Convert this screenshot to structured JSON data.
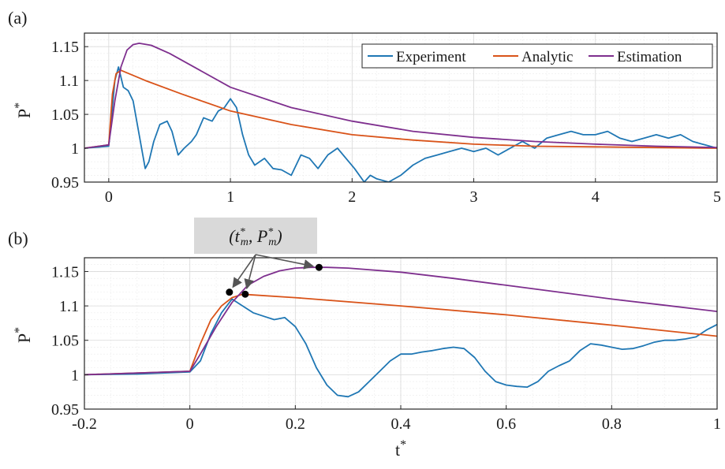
{
  "colors": {
    "experiment": "#1f77b4",
    "analytic": "#d95319",
    "estimation": "#7e2f8e",
    "annotation_box": "#d9d9d9"
  },
  "panel_labels": [
    "(a)",
    "(b)"
  ],
  "x_axis_label": "t*",
  "y_axis_label": "P*",
  "annotation": {
    "text": "(t*m, P*m)",
    "marker_color": "#000000"
  },
  "chart_data": [
    {
      "type": "line",
      "panel": "(a)",
      "xlim": [
        -0.2,
        5
      ],
      "ylim": [
        0.95,
        1.17
      ],
      "xticks": [
        0,
        1,
        2,
        3,
        4,
        5
      ],
      "xtick_labels": [
        "0",
        "1",
        "2",
        "3",
        "4",
        "5"
      ],
      "yticks": [
        0.95,
        1,
        1.05,
        1.1,
        1.15
      ],
      "ytick_labels": [
        "0.95",
        "1",
        "1.05",
        "1.1",
        "1.15"
      ],
      "ylabel": "P*",
      "grid": true,
      "legend": {
        "position": "top-right",
        "entries": [
          "Experiment",
          "Analytic",
          "Estimation"
        ]
      },
      "series": [
        {
          "name": "Experiment",
          "color": "#1f77b4",
          "x": [
            -0.2,
            0,
            0.02,
            0.05,
            0.08,
            0.12,
            0.16,
            0.2,
            0.25,
            0.3,
            0.33,
            0.37,
            0.42,
            0.48,
            0.52,
            0.57,
            0.62,
            0.68,
            0.72,
            0.78,
            0.85,
            0.9,
            0.95,
            1.0,
            1.05,
            1.1,
            1.15,
            1.2,
            1.28,
            1.35,
            1.42,
            1.5,
            1.58,
            1.65,
            1.72,
            1.8,
            1.88,
            1.95,
            2.02,
            2.1,
            2.15,
            2.2,
            2.3,
            2.4,
            2.5,
            2.6,
            2.7,
            2.8,
            2.9,
            3.0,
            3.1,
            3.2,
            3.3,
            3.4,
            3.5,
            3.6,
            3.7,
            3.8,
            3.9,
            4.0,
            4.1,
            4.2,
            4.3,
            4.4,
            4.5,
            4.6,
            4.7,
            4.8,
            4.9,
            5.0
          ],
          "y": [
            1.0,
            1.003,
            1.04,
            1.1,
            1.12,
            1.09,
            1.085,
            1.07,
            1.02,
            0.97,
            0.98,
            1.01,
            1.035,
            1.04,
            1.025,
            0.99,
            1.0,
            1.01,
            1.02,
            1.045,
            1.04,
            1.055,
            1.06,
            1.073,
            1.06,
            1.02,
            0.99,
            0.975,
            0.985,
            0.97,
            0.968,
            0.96,
            0.99,
            0.985,
            0.97,
            0.99,
            1.0,
            0.985,
            0.97,
            0.95,
            0.96,
            0.955,
            0.95,
            0.96,
            0.975,
            0.985,
            0.99,
            0.995,
            1.0,
            0.995,
            1.0,
            0.99,
            1.0,
            1.01,
            1.0,
            1.015,
            1.02,
            1.025,
            1.02,
            1.02,
            1.025,
            1.015,
            1.01,
            1.015,
            1.02,
            1.015,
            1.02,
            1.01,
            1.005,
            1.0
          ]
        },
        {
          "name": "Analytic",
          "color": "#d95319",
          "x": [
            -0.2,
            0,
            0.03,
            0.06,
            0.1,
            0.3,
            0.6,
            1.0,
            1.5,
            2.0,
            2.5,
            3.0,
            3.5,
            4.0,
            4.5,
            5.0
          ],
          "y": [
            1.0,
            1.005,
            1.08,
            1.11,
            1.115,
            1.1,
            1.08,
            1.055,
            1.035,
            1.02,
            1.012,
            1.006,
            1.003,
            1.002,
            1.001,
            1.0
          ]
        },
        {
          "name": "Estimation",
          "color": "#7e2f8e",
          "x": [
            -0.2,
            0,
            0.05,
            0.1,
            0.15,
            0.2,
            0.25,
            0.35,
            0.5,
            0.75,
            1.0,
            1.5,
            2.0,
            2.5,
            3.0,
            3.5,
            4.0,
            4.5,
            5.0
          ],
          "y": [
            1.0,
            1.005,
            1.07,
            1.12,
            1.145,
            1.153,
            1.155,
            1.152,
            1.14,
            1.115,
            1.09,
            1.06,
            1.04,
            1.025,
            1.016,
            1.01,
            1.006,
            1.003,
            1.001
          ]
        }
      ]
    },
    {
      "type": "line",
      "panel": "(b)",
      "xlim": [
        -0.2,
        1
      ],
      "ylim": [
        0.95,
        1.17
      ],
      "xticks": [
        -0.2,
        0,
        0.2,
        0.4,
        0.6,
        0.8,
        1
      ],
      "xtick_labels": [
        "-0.2",
        "0",
        "0.2",
        "0.4",
        "0.6",
        "0.8",
        "1"
      ],
      "yticks": [
        0.95,
        1,
        1.05,
        1.1,
        1.15
      ],
      "ytick_labels": [
        "0.95",
        "1",
        "1.05",
        "1.1",
        "1.15"
      ],
      "xlabel": "t*",
      "ylabel": "P*",
      "grid": true,
      "markers": [
        {
          "x": 0.075,
          "y": 1.12
        },
        {
          "x": 0.105,
          "y": 1.117
        },
        {
          "x": 0.245,
          "y": 1.156
        }
      ],
      "series": [
        {
          "name": "Experiment",
          "color": "#1f77b4",
          "x": [
            -0.2,
            -0.1,
            0,
            0.02,
            0.04,
            0.06,
            0.08,
            0.1,
            0.12,
            0.14,
            0.16,
            0.18,
            0.2,
            0.22,
            0.24,
            0.26,
            0.28,
            0.3,
            0.32,
            0.34,
            0.36,
            0.38,
            0.4,
            0.42,
            0.44,
            0.46,
            0.48,
            0.5,
            0.52,
            0.54,
            0.56,
            0.58,
            0.6,
            0.62,
            0.64,
            0.66,
            0.68,
            0.7,
            0.72,
            0.74,
            0.76,
            0.78,
            0.8,
            0.82,
            0.84,
            0.86,
            0.88,
            0.9,
            0.92,
            0.94,
            0.96,
            0.98,
            1.0
          ],
          "y": [
            1.0,
            1.001,
            1.004,
            1.02,
            1.06,
            1.09,
            1.11,
            1.1,
            1.09,
            1.085,
            1.08,
            1.083,
            1.07,
            1.045,
            1.01,
            0.985,
            0.97,
            0.968,
            0.975,
            0.99,
            1.005,
            1.02,
            1.03,
            1.03,
            1.033,
            1.035,
            1.038,
            1.04,
            1.038,
            1.025,
            1.005,
            0.99,
            0.985,
            0.983,
            0.982,
            0.99,
            1.005,
            1.013,
            1.02,
            1.035,
            1.045,
            1.043,
            1.04,
            1.037,
            1.038,
            1.042,
            1.047,
            1.05,
            1.05,
            1.052,
            1.055,
            1.065,
            1.073
          ]
        },
        {
          "name": "Analytic",
          "color": "#d95319",
          "x": [
            -0.2,
            0,
            0.02,
            0.04,
            0.06,
            0.08,
            0.1,
            0.2,
            0.4,
            0.6,
            0.8,
            1.0
          ],
          "y": [
            1.0,
            1.005,
            1.045,
            1.08,
            1.1,
            1.112,
            1.117,
            1.112,
            1.1,
            1.087,
            1.072,
            1.056
          ]
        },
        {
          "name": "Estimation",
          "color": "#7e2f8e",
          "x": [
            -0.2,
            0,
            0.02,
            0.05,
            0.08,
            0.11,
            0.14,
            0.17,
            0.2,
            0.23,
            0.26,
            0.3,
            0.4,
            0.5,
            0.6,
            0.7,
            0.8,
            0.9,
            1.0
          ],
          "y": [
            1.0,
            1.005,
            1.03,
            1.07,
            1.105,
            1.13,
            1.143,
            1.151,
            1.155,
            1.156,
            1.156,
            1.155,
            1.149,
            1.14,
            1.13,
            1.12,
            1.11,
            1.101,
            1.092
          ]
        }
      ]
    }
  ]
}
